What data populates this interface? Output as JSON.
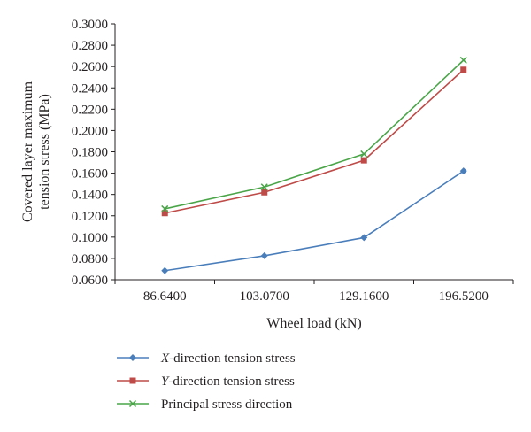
{
  "chart_data": {
    "type": "line",
    "categories": [
      "86.6400",
      "103.0700",
      "129.1600",
      "196.5200"
    ],
    "xlabel": "Wheel load (kN)",
    "ylabel_lines": [
      "Covered layer maximum",
      "tension stress (MPa)"
    ],
    "ylim": [
      0.06,
      0.3
    ],
    "yticks": [
      "0.0600",
      "0.0800",
      "0.1000",
      "0.1200",
      "0.1400",
      "0.1600",
      "0.1800",
      "0.2000",
      "0.2200",
      "0.2400",
      "0.2600",
      "0.2800",
      "0.3000"
    ],
    "ytick_values": [
      0.06,
      0.08,
      0.1,
      0.12,
      0.14,
      0.16,
      0.18,
      0.2,
      0.22,
      0.24,
      0.26,
      0.28,
      0.3
    ],
    "grid": false,
    "legend_position": "bottom",
    "series": [
      {
        "name": "X-direction tension stress",
        "name_italic": "X",
        "name_rest": "-direction tension stress",
        "values": [
          0.0685,
          0.0825,
          0.0995,
          0.162
        ],
        "color": "#4a7ebb",
        "marker": "diamond"
      },
      {
        "name": "Y-direction tension stress",
        "name_italic": "Y",
        "name_rest": "-direction tension stress",
        "values": [
          0.1225,
          0.142,
          0.172,
          0.257
        ],
        "color": "#be4b48",
        "marker": "square"
      },
      {
        "name": "Principal stress direction",
        "name_italic": "",
        "name_rest": "Principal stress direction",
        "values": [
          0.1265,
          0.147,
          0.178,
          0.266
        ],
        "color": "#4aa548",
        "marker": "x"
      }
    ]
  }
}
